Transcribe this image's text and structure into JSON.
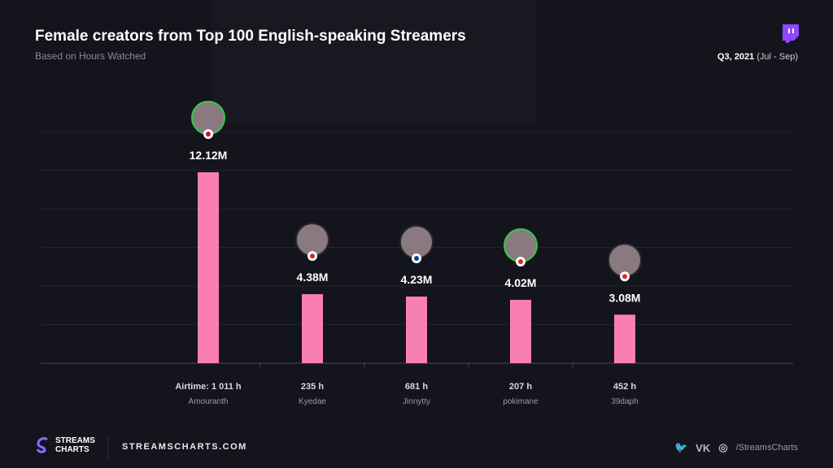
{
  "header": {
    "title": "Female creators from Top 100 English-speaking Streamers",
    "subtitle": "Based on Hours Watched",
    "period_bold": "Q3, 2021",
    "period_range": "(Jul - Sep)"
  },
  "chart_data": {
    "type": "bar",
    "title": "Female creators from Top 100 English-speaking Streamers",
    "subtitle": "Based on Hours Watched",
    "categories": [
      "Amouranth",
      "Kyedae",
      "Jinnytty",
      "pokimane",
      "39daph"
    ],
    "values": [
      12.12,
      4.38,
      4.23,
      4.02,
      3.08
    ],
    "value_labels": [
      "12.12M",
      "4.38M",
      "4.23M",
      "4.02M",
      "3.08M"
    ],
    "airtime": [
      "Airtime: 1 011 h",
      "235 h",
      "681 h",
      "207 h",
      "452 h"
    ],
    "flags": [
      "us",
      "ca",
      "kr",
      "ca",
      "ca"
    ],
    "ylim": [
      0,
      14.7
    ],
    "grid": true,
    "bar_color": "#f97fb0",
    "units": "hours watched (millions)"
  },
  "footer": {
    "logo_line1": "STREAMS",
    "logo_line2": "CHARTS",
    "site": "STREAMSCHARTS.COM",
    "handle": "/StreamsCharts",
    "icons": [
      "twitter-icon",
      "vk-icon",
      "instagram-icon"
    ]
  },
  "colors": {
    "background": "#14141d",
    "twitch": "#9146ff"
  }
}
